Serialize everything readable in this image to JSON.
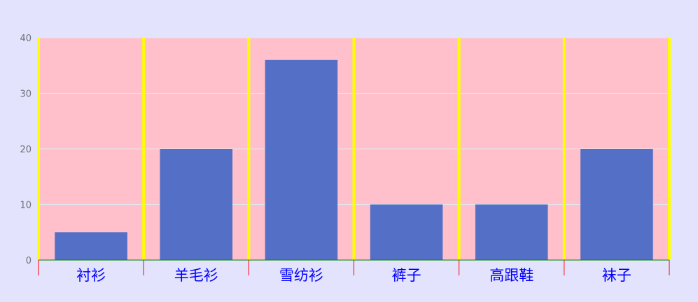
{
  "chart_data": {
    "type": "bar",
    "categories": [
      "衬衫",
      "羊毛衫",
      "雪纺衫",
      "裤子",
      "高跟鞋",
      "袜子"
    ],
    "series": [
      {
        "values": [
          5,
          20,
          36,
          10,
          10,
          20
        ]
      }
    ],
    "ylim": [
      0,
      40
    ],
    "y_ticks": [
      0,
      10,
      20,
      30,
      40
    ],
    "grid": true,
    "legend": "none"
  },
  "colors": {
    "page_background": "#e3e3fd",
    "plot_background": "#ffc0cb",
    "bar": "#5470c6",
    "split_line": "#ffff00",
    "grid_line": "#e0e6f1",
    "x_axis_line": "#008000",
    "x_axis_tick": "#ff0000",
    "x_label": "#0000ff",
    "y_label": "#6e7079"
  }
}
